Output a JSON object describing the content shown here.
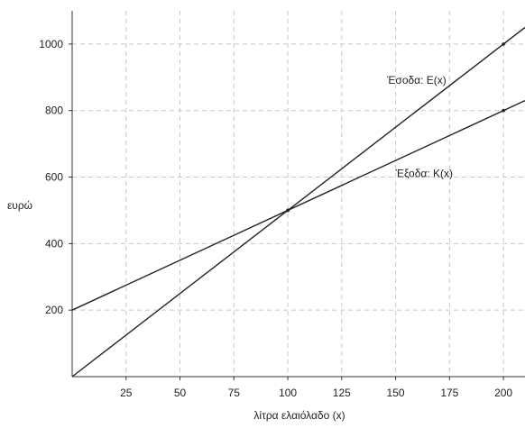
{
  "chart_data": {
    "type": "line",
    "title": "",
    "xlabel": "λίτρα ελαιόλαδο (x)",
    "ylabel": "ευρώ",
    "xlim": [
      0,
      210
    ],
    "ylim": [
      0,
      1100
    ],
    "x_ticks": [
      25,
      50,
      75,
      100,
      125,
      150,
      175,
      200
    ],
    "y_ticks": [
      200,
      400,
      600,
      800,
      1000
    ],
    "grid": true,
    "series": [
      {
        "name": "Έσοδα: E(x)",
        "x": [
          0,
          210
        ],
        "y": [
          0,
          1050
        ],
        "marker_points": [
          [
            100,
            500
          ],
          [
            200,
            1000
          ]
        ]
      },
      {
        "name": "Έξοδα: K(x)",
        "x": [
          0,
          210
        ],
        "y": [
          200,
          830
        ],
        "marker_points": [
          [
            100,
            500
          ],
          [
            200,
            800
          ]
        ]
      }
    ],
    "annotations": [
      {
        "text": "Έσοδα: E(x)",
        "x": 146,
        "y": 880
      },
      {
        "text": "Έξοδα: K(x)",
        "x": 150,
        "y": 600
      }
    ],
    "colors": {
      "line": "#222222",
      "grid": "#c8c8c8",
      "axis": "#333333"
    }
  }
}
